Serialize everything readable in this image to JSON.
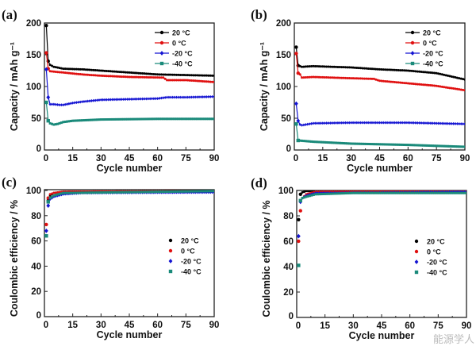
{
  "chart_data": [
    {
      "panel": "(a)",
      "type": "line",
      "xlabel": "Cycle number",
      "ylabel": "Capacity / mAh g⁻¹",
      "xlim": [
        0,
        90
      ],
      "ylim": [
        0,
        200
      ],
      "xticks": [
        0,
        15,
        30,
        45,
        60,
        75,
        90
      ],
      "yticks": [
        0,
        50,
        100,
        150,
        200
      ],
      "legend": "top-right",
      "legend_style": "line-marker",
      "grid": false,
      "series": [
        {
          "name": "20 °C",
          "color": "#000000",
          "marker": "circle",
          "points": [
            [
              1,
              196
            ],
            [
              2,
              140
            ],
            [
              3,
              134
            ],
            [
              5,
              131
            ],
            [
              10,
              128
            ],
            [
              20,
              127
            ],
            [
              30,
              125
            ],
            [
              45,
              122
            ],
            [
              60,
              119
            ],
            [
              75,
              118
            ],
            [
              90,
              117
            ]
          ]
        },
        {
          "name": "0 °C",
          "color": "#e01010",
          "marker": "circle",
          "points": [
            [
              1,
              153
            ],
            [
              2,
              128
            ],
            [
              3,
              124
            ],
            [
              10,
              122
            ],
            [
              20,
              119
            ],
            [
              30,
              117
            ],
            [
              45,
              115
            ],
            [
              63,
              114
            ],
            [
              65,
              110
            ],
            [
              75,
              110
            ],
            [
              90,
              107
            ]
          ]
        },
        {
          "name": "-20 °C",
          "color": "#1414d2",
          "marker": "diamond",
          "points": [
            [
              1,
              127
            ],
            [
              2,
              83
            ],
            [
              3,
              72
            ],
            [
              5,
              72
            ],
            [
              8,
              71
            ],
            [
              10,
              71
            ],
            [
              15,
              74
            ],
            [
              20,
              76
            ],
            [
              30,
              79
            ],
            [
              45,
              80
            ],
            [
              60,
              81
            ],
            [
              65,
              83
            ],
            [
              75,
              83
            ],
            [
              90,
              84
            ]
          ]
        },
        {
          "name": "-40 °C",
          "color": "#1a8a7a",
          "marker": "square",
          "points": [
            [
              1,
              75
            ],
            [
              2,
              46
            ],
            [
              3,
              42
            ],
            [
              5,
              40
            ],
            [
              7,
              41
            ],
            [
              10,
              44
            ],
            [
              15,
              46
            ],
            [
              30,
              48
            ],
            [
              60,
              49
            ],
            [
              90,
              49
            ]
          ]
        }
      ]
    },
    {
      "panel": "(b)",
      "type": "line",
      "xlabel": "Cycle number",
      "ylabel": "Capacity / mAh g⁻¹",
      "xlim": [
        0,
        90
      ],
      "ylim": [
        0,
        200
      ],
      "xticks": [
        0,
        15,
        30,
        45,
        60,
        75,
        90
      ],
      "yticks": [
        0,
        50,
        100,
        150,
        200
      ],
      "legend": "top-right",
      "legend_style": "line-marker",
      "grid": false,
      "series": [
        {
          "name": "20 °C",
          "color": "#000000",
          "marker": "circle",
          "points": [
            [
              1,
              162
            ],
            [
              2,
              133
            ],
            [
              4,
              131
            ],
            [
              10,
              132
            ],
            [
              30,
              130
            ],
            [
              45,
              127
            ],
            [
              60,
              125
            ],
            [
              75,
              121
            ],
            [
              90,
              111
            ]
          ]
        },
        {
          "name": "0 °C",
          "color": "#e01010",
          "marker": "circle",
          "points": [
            [
              1,
              152
            ],
            [
              2,
              121
            ],
            [
              3,
              119
            ],
            [
              4,
              114
            ],
            [
              10,
              115
            ],
            [
              30,
              113
            ],
            [
              42,
              112
            ],
            [
              45,
              109
            ],
            [
              60,
              105
            ],
            [
              75,
              101
            ],
            [
              90,
              94
            ]
          ]
        },
        {
          "name": "-20 °C",
          "color": "#1414d2",
          "marker": "diamond",
          "points": [
            [
              1,
              73
            ],
            [
              2,
              46
            ],
            [
              3,
              40
            ],
            [
              4,
              39
            ],
            [
              10,
              42
            ],
            [
              30,
              43
            ],
            [
              60,
              43
            ],
            [
              90,
              41
            ]
          ]
        },
        {
          "name": "-40 °C",
          "color": "#1a8a7a",
          "marker": "square",
          "points": [
            [
              1,
              41
            ],
            [
              2,
              15
            ],
            [
              10,
              13
            ],
            [
              30,
              10
            ],
            [
              60,
              8
            ],
            [
              90,
              5
            ]
          ]
        }
      ]
    },
    {
      "panel": "(c)",
      "type": "scatter",
      "xlabel": "Cycle number",
      "ylabel": "Coulombic efficiency / %",
      "xlim": [
        0,
        90
      ],
      "ylim": [
        0,
        105
      ],
      "xticks": [
        0,
        15,
        30,
        45,
        60,
        75,
        90
      ],
      "yticks": [
        0,
        20,
        40,
        60,
        80,
        100
      ],
      "legend": "center-right",
      "legend_style": "marker",
      "grid": false,
      "series": [
        {
          "name": "20 °C",
          "color": "#000000",
          "marker": "circle",
          "points": [
            [
              2,
              92
            ],
            [
              3,
              96
            ],
            [
              5,
              98
            ],
            [
              10,
              99
            ],
            [
              90,
              99.5
            ]
          ]
        },
        {
          "name": "0 °C",
          "color": "#e01010",
          "marker": "circle",
          "points": [
            [
              1,
              73
            ],
            [
              2,
              94
            ],
            [
              3,
              97
            ],
            [
              5,
              98
            ],
            [
              10,
              99
            ],
            [
              90,
              99.5
            ]
          ]
        },
        {
          "name": "-20 °C",
          "color": "#1414d2",
          "marker": "diamond",
          "points": [
            [
              1,
              68
            ],
            [
              2,
              88
            ],
            [
              3,
              93
            ],
            [
              5,
              95
            ],
            [
              10,
              97
            ],
            [
              20,
              98
            ],
            [
              90,
              98.5
            ]
          ]
        },
        {
          "name": "-40 °C",
          "color": "#1a8a7a",
          "marker": "square",
          "points": [
            [
              1,
              64
            ],
            [
              2,
              91
            ],
            [
              3,
              94
            ],
            [
              5,
              96
            ],
            [
              10,
              98
            ],
            [
              90,
              99.5
            ]
          ]
        }
      ]
    },
    {
      "panel": "(d)",
      "type": "scatter",
      "xlabel": "Cycle number",
      "ylabel": "Coulombic efficiency / %",
      "xlim": [
        0,
        90
      ],
      "ylim": [
        0,
        105
      ],
      "xticks": [
        0,
        15,
        30,
        45,
        60,
        75,
        90
      ],
      "yticks": [
        0,
        20,
        40,
        60,
        80,
        100
      ],
      "legend": "center-right",
      "legend_style": "marker",
      "grid": false,
      "series": [
        {
          "name": "20 °C",
          "color": "#000000",
          "marker": "circle",
          "points": [
            [
              1,
              77
            ],
            [
              2,
              97
            ],
            [
              3,
              98.5
            ],
            [
              5,
              99.5
            ],
            [
              90,
              100
            ]
          ]
        },
        {
          "name": "0 °C",
          "color": "#e01010",
          "marker": "circle",
          "points": [
            [
              1,
              60
            ],
            [
              2,
              84
            ],
            [
              3,
              94
            ],
            [
              5,
              97
            ],
            [
              10,
              99
            ],
            [
              90,
              99.5
            ]
          ]
        },
        {
          "name": "-20 °C",
          "color": "#1414d2",
          "marker": "diamond",
          "points": [
            [
              1,
              64
            ],
            [
              2,
              91
            ],
            [
              3,
              94
            ],
            [
              5,
              96
            ],
            [
              10,
              98
            ],
            [
              90,
              99
            ]
          ]
        },
        {
          "name": "-40 °C",
          "color": "#1a8a7a",
          "marker": "square",
          "points": [
            [
              1,
              41
            ],
            [
              2,
              92
            ],
            [
              3,
              94
            ],
            [
              5,
              95
            ],
            [
              10,
              97
            ],
            [
              30,
              98
            ],
            [
              90,
              98
            ]
          ]
        }
      ]
    }
  ],
  "watermark": "能源学人"
}
